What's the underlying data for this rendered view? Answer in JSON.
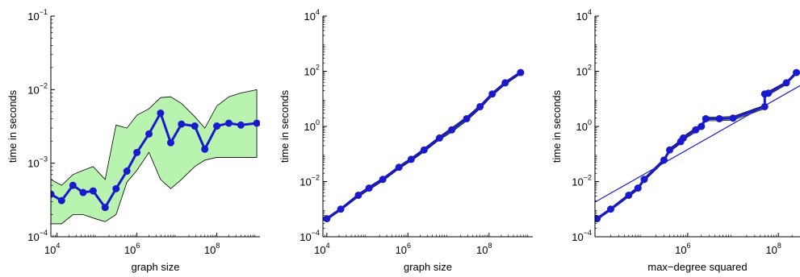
{
  "chart_data": [
    {
      "type": "line",
      "xlabel": "graph size",
      "ylabel": "time in seconds",
      "xscale": "log",
      "yscale": "log",
      "xlim": [
        7000,
        1200000000
      ],
      "ylim": [
        0.0001,
        0.1
      ],
      "x_ticks": [
        {
          "value": 10000,
          "base": "10",
          "exp": "4"
        },
        {
          "value": 1000000,
          "base": "10",
          "exp": "6"
        },
        {
          "value": 100000000,
          "base": "10",
          "exp": "8"
        }
      ],
      "y_ticks": [
        {
          "value": 0.0001,
          "base": "10",
          "exp": "−4"
        },
        {
          "value": 0.001,
          "base": "10",
          "exp": "−3"
        },
        {
          "value": 0.01,
          "base": "10",
          "exp": "−2"
        },
        {
          "value": 0.1,
          "base": "10",
          "exp": "−1"
        }
      ],
      "grid": false,
      "series": [
        {
          "role": "mean",
          "color": "#1a1acd",
          "x": [
            7000,
            13000,
            25000,
            45000,
            80000,
            160000,
            300000,
            560000,
            1000000,
            2000000,
            3900000,
            7000000,
            13000000,
            28000000,
            50000000,
            100000000,
            200000000,
            400000000,
            1000000000
          ],
          "y": [
            0.00038,
            0.00031,
            0.0005,
            0.0004,
            0.00042,
            0.00025,
            0.00045,
            0.00078,
            0.0014,
            0.0025,
            0.0048,
            0.0019,
            0.0034,
            0.0032,
            0.00155,
            0.0032,
            0.0035,
            0.0033,
            0.0035
          ]
        },
        {
          "role": "band",
          "color": "#b8f3b0",
          "x": [
            7000,
            13000,
            25000,
            45000,
            80000,
            160000,
            300000,
            560000,
            1000000,
            2000000,
            3900000,
            7000000,
            13000000,
            28000000,
            50000000,
            100000000,
            200000000,
            400000000,
            1000000000
          ],
          "low": [
            0.00015,
            0.00015,
            0.0002,
            0.0002,
            0.00018,
            0.00016,
            0.0002,
            0.00055,
            0.0008,
            0.0014,
            0.0006,
            0.00045,
            0.0006,
            0.0009,
            0.0011,
            0.0012,
            0.0012,
            0.0012,
            0.0012
          ],
          "high": [
            0.0006,
            0.0005,
            0.0007,
            0.0008,
            0.0009,
            0.0006,
            0.0033,
            0.003,
            0.0045,
            0.0055,
            0.0078,
            0.008,
            0.0065,
            0.0043,
            0.003,
            0.006,
            0.008,
            0.009,
            0.01
          ]
        }
      ]
    },
    {
      "type": "line",
      "xlabel": "graph size",
      "ylabel": "time in seconds",
      "xscale": "log",
      "yscale": "log",
      "xlim": [
        8000,
        1200000000
      ],
      "ylim": [
        0.0001,
        10000
      ],
      "x_ticks": [
        {
          "value": 10000,
          "base": "10",
          "exp": "4"
        },
        {
          "value": 1000000,
          "base": "10",
          "exp": "6"
        },
        {
          "value": 100000000,
          "base": "10",
          "exp": "8"
        }
      ],
      "y_ticks": [
        {
          "value": 0.0001,
          "base": "10",
          "exp": "−4"
        },
        {
          "value": 0.01,
          "base": "10",
          "exp": "−2"
        },
        {
          "value": 1,
          "base": "10",
          "exp": "0"
        },
        {
          "value": 100,
          "base": "10",
          "exp": "2"
        },
        {
          "value": 10000,
          "base": "10",
          "exp": "4"
        }
      ],
      "grid": false,
      "series": [
        {
          "role": "mean",
          "color": "#1a1acd",
          "x": [
            10000,
            22000,
            60000,
            110000,
            240000,
            600000,
            1200000,
            2500000,
            6000000,
            12000000,
            28000000,
            60000000,
            120000000,
            250000000,
            600000000
          ],
          "y": [
            0.00045,
            0.001,
            0.0032,
            0.0058,
            0.012,
            0.033,
            0.064,
            0.14,
            0.38,
            0.75,
            1.9,
            5.2,
            15,
            38,
            90
          ]
        },
        {
          "role": "band",
          "color": "#b8f3b0",
          "x": [
            10000,
            22000,
            60000,
            110000,
            240000,
            600000,
            1200000,
            2500000,
            6000000,
            12000000,
            28000000,
            60000000,
            120000000,
            250000000,
            600000000
          ],
          "low": [
            0.0004,
            0.0009,
            0.0028,
            0.005,
            0.0105,
            0.029,
            0.056,
            0.12,
            0.33,
            0.62,
            1.6,
            4.4,
            13,
            33,
            80
          ],
          "high": [
            0.0005,
            0.0011,
            0.0036,
            0.0066,
            0.0135,
            0.037,
            0.072,
            0.16,
            0.43,
            0.9,
            2.2,
            5.9,
            17,
            42,
            100
          ]
        }
      ]
    },
    {
      "type": "line",
      "xlabel": "max−degree squared",
      "ylabel": "time in seconds",
      "xscale": "log",
      "yscale": "log",
      "xlim": [
        9000,
        300000000
      ],
      "ylim": [
        0.0001,
        10000
      ],
      "x_ticks": [
        {
          "value": 1000000,
          "base": "10",
          "exp": "6"
        },
        {
          "value": 100000000,
          "base": "10",
          "exp": "8"
        }
      ],
      "y_ticks": [
        {
          "value": 0.0001,
          "base": "10",
          "exp": "−4"
        },
        {
          "value": 0.01,
          "base": "10",
          "exp": "−2"
        },
        {
          "value": 1,
          "base": "10",
          "exp": "0"
        },
        {
          "value": 100,
          "base": "10",
          "exp": "2"
        },
        {
          "value": 10000,
          "base": "10",
          "exp": "4"
        }
      ],
      "grid": false,
      "series": [
        {
          "role": "mean",
          "color": "#1a1acd",
          "x": [
            10000,
            20000,
            50000,
            80000,
            110000,
            300000,
            400000,
            700000,
            800000,
            1500000,
            2000000,
            2500000,
            5000000,
            10000000,
            50000000,
            50000000,
            60000000,
            150000000,
            250000000
          ],
          "y": [
            0.00045,
            0.001,
            0.0032,
            0.0058,
            0.012,
            0.06,
            0.14,
            0.28,
            0.38,
            0.75,
            1.0,
            1.9,
            1.9,
            2.0,
            5.2,
            15,
            16,
            38,
            90
          ]
        },
        {
          "role": "band",
          "color": "#b8f3b0",
          "x": [
            10000,
            20000,
            50000,
            80000,
            110000,
            300000,
            400000,
            700000,
            800000,
            1500000,
            2000000,
            2500000,
            5000000,
            10000000,
            50000000,
            50000000,
            60000000,
            150000000,
            250000000
          ],
          "low": [
            0.0004,
            0.0009,
            0.0028,
            0.005,
            0.0105,
            0.052,
            0.12,
            0.24,
            0.33,
            0.62,
            0.85,
            1.6,
            1.6,
            1.7,
            4.4,
            13,
            13.5,
            33,
            80
          ],
          "high": [
            0.0005,
            0.0011,
            0.0036,
            0.0066,
            0.0135,
            0.068,
            0.16,
            0.32,
            0.43,
            0.9,
            1.2,
            2.2,
            2.2,
            2.3,
            5.9,
            17,
            18.5,
            42,
            100
          ]
        },
        {
          "role": "fit",
          "color": "#1a1acd",
          "x": [
            9000,
            300000000
          ],
          "y": [
            0.0018,
            30
          ]
        }
      ]
    }
  ]
}
